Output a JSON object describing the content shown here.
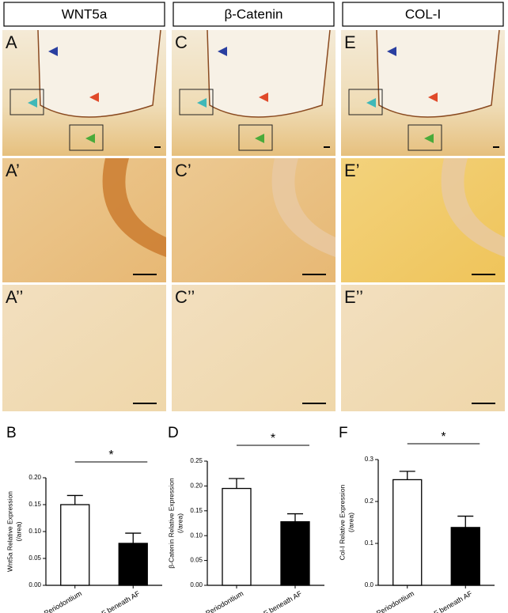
{
  "headers": [
    "WNT5a",
    "β-Catenin",
    "COL-I"
  ],
  "panel_labels": [
    [
      "A",
      "A’",
      "A’’"
    ],
    [
      "C",
      "C’",
      "C’’"
    ],
    [
      "E",
      "E’",
      "E’’"
    ]
  ],
  "chart_data": [
    {
      "type": "bar",
      "label": "B",
      "ylabel": [
        "Wnt5a Relative Expression",
        "(/area)"
      ],
      "categories": [
        "Dev. Periodontium",
        "DF beneath AF"
      ],
      "values": [
        0.15,
        0.078
      ],
      "errors": [
        0.017,
        0.019
      ],
      "colors": [
        "#ffffff",
        "#000000"
      ],
      "ylim": [
        0,
        0.2
      ],
      "yticks": [
        {
          "value": 0,
          "label": "0.00"
        },
        {
          "value": 0.05,
          "label": "0.05"
        },
        {
          "value": 0.1,
          "label": "0.10"
        },
        {
          "value": 0.15,
          "label": "0.15"
        },
        {
          "value": 0.2,
          "label": "0.20"
        }
      ],
      "annotation": "*"
    },
    {
      "type": "bar",
      "label": "D",
      "ylabel": [
        "β-Catenin Relative Expression",
        "(/area)"
      ],
      "categories": [
        "Dev. Periodontium",
        "DF beneath AF"
      ],
      "values": [
        0.195,
        0.128
      ],
      "errors": [
        0.02,
        0.016
      ],
      "colors": [
        "#ffffff",
        "#000000"
      ],
      "ylim": [
        0,
        0.25
      ],
      "yticks": [
        {
          "value": 0,
          "label": "0.00"
        },
        {
          "value": 0.05,
          "label": "0.05"
        },
        {
          "value": 0.1,
          "label": "0.10"
        },
        {
          "value": 0.15,
          "label": "0.15"
        },
        {
          "value": 0.2,
          "label": "0.20"
        },
        {
          "value": 0.25,
          "label": "0.25"
        }
      ],
      "annotation": "*"
    },
    {
      "type": "bar",
      "label": "F",
      "ylabel": [
        "Col-I Relative Expression",
        "(/area)"
      ],
      "categories": [
        "Dev. Periodontium",
        "DF beneath AF"
      ],
      "values": [
        0.252,
        0.138
      ],
      "errors": [
        0.02,
        0.027
      ],
      "colors": [
        "#ffffff",
        "#000000"
      ],
      "ylim": [
        0,
        0.3
      ],
      "yticks": [
        {
          "value": 0,
          "label": "0.0"
        },
        {
          "value": 0.1,
          "label": "0.1"
        },
        {
          "value": 0.2,
          "label": "0.2"
        },
        {
          "value": 0.3,
          "label": "0.3"
        }
      ],
      "annotation": "*"
    }
  ]
}
